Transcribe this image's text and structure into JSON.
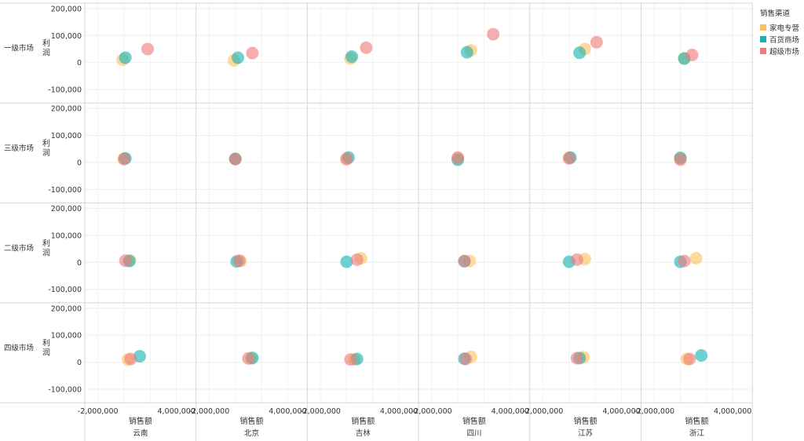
{
  "chart_data": {
    "type": "scatter",
    "xlabel": "销售额",
    "ylabel": "利润",
    "xlim": [
      -3000000,
      5500000
    ],
    "ylim": [
      -150000,
      220000
    ],
    "xticks": [
      {
        "v": -2000000,
        "label": "-2,000,000"
      },
      {
        "v": 4000000,
        "label": "4,000,000"
      }
    ],
    "yticks": [
      {
        "v": 200000,
        "label": "200,000"
      },
      {
        "v": 100000,
        "label": "100,000"
      },
      {
        "v": 0,
        "label": "0"
      },
      {
        "v": -100000,
        "label": "-100,000"
      }
    ],
    "rows": [
      "一级市场",
      "三级市场",
      "二级市场",
      "四级市场"
    ],
    "columns": [
      "云南",
      "北京",
      "吉林",
      "四川",
      "江苏",
      "浙江"
    ],
    "legend": {
      "title": "销售渠道",
      "items": [
        {
          "name": "家电专营",
          "color": "#fbc15e"
        },
        {
          "name": "百货商场",
          "color": "#17b3b4"
        },
        {
          "name": "超级市场",
          "color": "#f07b7b"
        }
      ]
    },
    "series": [
      {
        "name": "家电专营",
        "color": "#fbc15e",
        "points": [
          {
            "row": "一级市场",
            "col": "云南",
            "x": -100000,
            "y": 10000
          },
          {
            "row": "一级市场",
            "col": "北京",
            "x": -100000,
            "y": 8000
          },
          {
            "row": "一级市场",
            "col": "吉林",
            "x": 300000,
            "y": 15000
          },
          {
            "row": "一级市场",
            "col": "四川",
            "x": 1000000,
            "y": 45000
          },
          {
            "row": "一级市场",
            "col": "江苏",
            "x": 1200000,
            "y": 50000
          },
          {
            "row": "一级市场",
            "col": "浙江",
            "x": 300000,
            "y": 15000
          },
          {
            "row": "三级市场",
            "col": "云南",
            "x": 0,
            "y": 15000
          },
          {
            "row": "三级市场",
            "col": "北京",
            "x": 0,
            "y": 13000
          },
          {
            "row": "三级市场",
            "col": "吉林",
            "x": 0,
            "y": 15000
          },
          {
            "row": "三级市场",
            "col": "四川",
            "x": 0,
            "y": 15000
          },
          {
            "row": "三级市场",
            "col": "江苏",
            "x": 0,
            "y": 18000
          },
          {
            "row": "三级市场",
            "col": "浙江",
            "x": 0,
            "y": 15000
          },
          {
            "row": "二级市场",
            "col": "云南",
            "x": 450000,
            "y": 7000
          },
          {
            "row": "二级市场",
            "col": "北京",
            "x": 400000,
            "y": 5000
          },
          {
            "row": "二级市场",
            "col": "吉林",
            "x": 1100000,
            "y": 15000
          },
          {
            "row": "二级市场",
            "col": "四川",
            "x": 900000,
            "y": 5000
          },
          {
            "row": "二级市场",
            "col": "江苏",
            "x": 1200000,
            "y": 12000
          },
          {
            "row": "二级市场",
            "col": "浙江",
            "x": 1200000,
            "y": 15000
          },
          {
            "row": "四级市场",
            "col": "云南",
            "x": 300000,
            "y": 10000
          },
          {
            "row": "四级市场",
            "col": "北京",
            "x": 1200000,
            "y": 14000
          },
          {
            "row": "四级市场",
            "col": "吉林",
            "x": 600000,
            "y": 10000
          },
          {
            "row": "四级市场",
            "col": "四川",
            "x": 1000000,
            "y": 20000
          },
          {
            "row": "四级市场",
            "col": "江苏",
            "x": 1100000,
            "y": 18000
          },
          {
            "row": "四级市场",
            "col": "浙江",
            "x": 500000,
            "y": 12000
          }
        ]
      },
      {
        "name": "百货商场",
        "color": "#17b3b4",
        "points": [
          {
            "row": "一级市场",
            "col": "云南",
            "x": 100000,
            "y": 18000
          },
          {
            "row": "一级市场",
            "col": "北京",
            "x": 200000,
            "y": 18000
          },
          {
            "row": "一级市场",
            "col": "吉林",
            "x": 400000,
            "y": 22000
          },
          {
            "row": "一级市场",
            "col": "四川",
            "x": 700000,
            "y": 38000
          },
          {
            "row": "一级市场",
            "col": "江苏",
            "x": 800000,
            "y": 36000
          },
          {
            "row": "一级市场",
            "col": "浙江",
            "x": 300000,
            "y": 15000
          },
          {
            "row": "三级市场",
            "col": "云南",
            "x": 100000,
            "y": 15000
          },
          {
            "row": "三级市场",
            "col": "北京",
            "x": 0,
            "y": 13000
          },
          {
            "row": "三级市场",
            "col": "吉林",
            "x": 150000,
            "y": 18000
          },
          {
            "row": "三级市场",
            "col": "四川",
            "x": 0,
            "y": 10000
          },
          {
            "row": "三级市场",
            "col": "江苏",
            "x": 100000,
            "y": 18000
          },
          {
            "row": "三级市场",
            "col": "浙江",
            "x": 0,
            "y": 17000
          },
          {
            "row": "二级市场",
            "col": "云南",
            "x": 400000,
            "y": 5000
          },
          {
            "row": "二级市场",
            "col": "北京",
            "x": 100000,
            "y": 3000
          },
          {
            "row": "二级市场",
            "col": "吉林",
            "x": 0,
            "y": 2000
          },
          {
            "row": "二级市场",
            "col": "四川",
            "x": 500000,
            "y": 4000
          },
          {
            "row": "二级市场",
            "col": "江苏",
            "x": 0,
            "y": 2000
          },
          {
            "row": "二级市场",
            "col": "浙江",
            "x": 0,
            "y": 2000
          },
          {
            "row": "四级市场",
            "col": "云南",
            "x": 1200000,
            "y": 22000
          },
          {
            "row": "四级市场",
            "col": "北京",
            "x": 1300000,
            "y": 16000
          },
          {
            "row": "四级市场",
            "col": "吉林",
            "x": 800000,
            "y": 12000
          },
          {
            "row": "四级市场",
            "col": "四川",
            "x": 500000,
            "y": 13000
          },
          {
            "row": "四级市场",
            "col": "江苏",
            "x": 800000,
            "y": 15000
          },
          {
            "row": "四级市场",
            "col": "浙江",
            "x": 1600000,
            "y": 25000
          }
        ]
      },
      {
        "name": "超级市场",
        "color": "#f07b7b",
        "points": [
          {
            "row": "一级市场",
            "col": "云南",
            "x": 1800000,
            "y": 50000
          },
          {
            "row": "一级市场",
            "col": "北京",
            "x": 1300000,
            "y": 35000
          },
          {
            "row": "一级市场",
            "col": "吉林",
            "x": 1500000,
            "y": 55000
          },
          {
            "row": "一级市场",
            "col": "四川",
            "x": 2700000,
            "y": 105000
          },
          {
            "row": "一级市场",
            "col": "江苏",
            "x": 2100000,
            "y": 75000
          },
          {
            "row": "一级市场",
            "col": "浙江",
            "x": 900000,
            "y": 28000
          },
          {
            "row": "三级市场",
            "col": "云南",
            "x": 0,
            "y": 12000
          },
          {
            "row": "三级市场",
            "col": "北京",
            "x": 0,
            "y": 12000
          },
          {
            "row": "三级市场",
            "col": "吉林",
            "x": 0,
            "y": 12000
          },
          {
            "row": "三级市场",
            "col": "四川",
            "x": 0,
            "y": 18000
          },
          {
            "row": "三级市场",
            "col": "江苏",
            "x": 0,
            "y": 15000
          },
          {
            "row": "三级市场",
            "col": "浙江",
            "x": 0,
            "y": 10000
          },
          {
            "row": "二级市场",
            "col": "云南",
            "x": 100000,
            "y": 6000
          },
          {
            "row": "二级市场",
            "col": "北京",
            "x": 300000,
            "y": 6000
          },
          {
            "row": "二级市场",
            "col": "吉林",
            "x": 800000,
            "y": 10000
          },
          {
            "row": "二级市场",
            "col": "四川",
            "x": 500000,
            "y": 5000
          },
          {
            "row": "二级市场",
            "col": "江苏",
            "x": 600000,
            "y": 10000
          },
          {
            "row": "二级市场",
            "col": "浙江",
            "x": 300000,
            "y": 5000
          },
          {
            "row": "四级市场",
            "col": "云南",
            "x": 500000,
            "y": 12000
          },
          {
            "row": "四级市场",
            "col": "北京",
            "x": 1000000,
            "y": 14000
          },
          {
            "row": "四级市场",
            "col": "吉林",
            "x": 300000,
            "y": 10000
          },
          {
            "row": "四级市场",
            "col": "四川",
            "x": 600000,
            "y": 12000
          },
          {
            "row": "四级市场",
            "col": "江苏",
            "x": 600000,
            "y": 15000
          },
          {
            "row": "四级市场",
            "col": "浙江",
            "x": 700000,
            "y": 12000
          }
        ]
      }
    ]
  }
}
